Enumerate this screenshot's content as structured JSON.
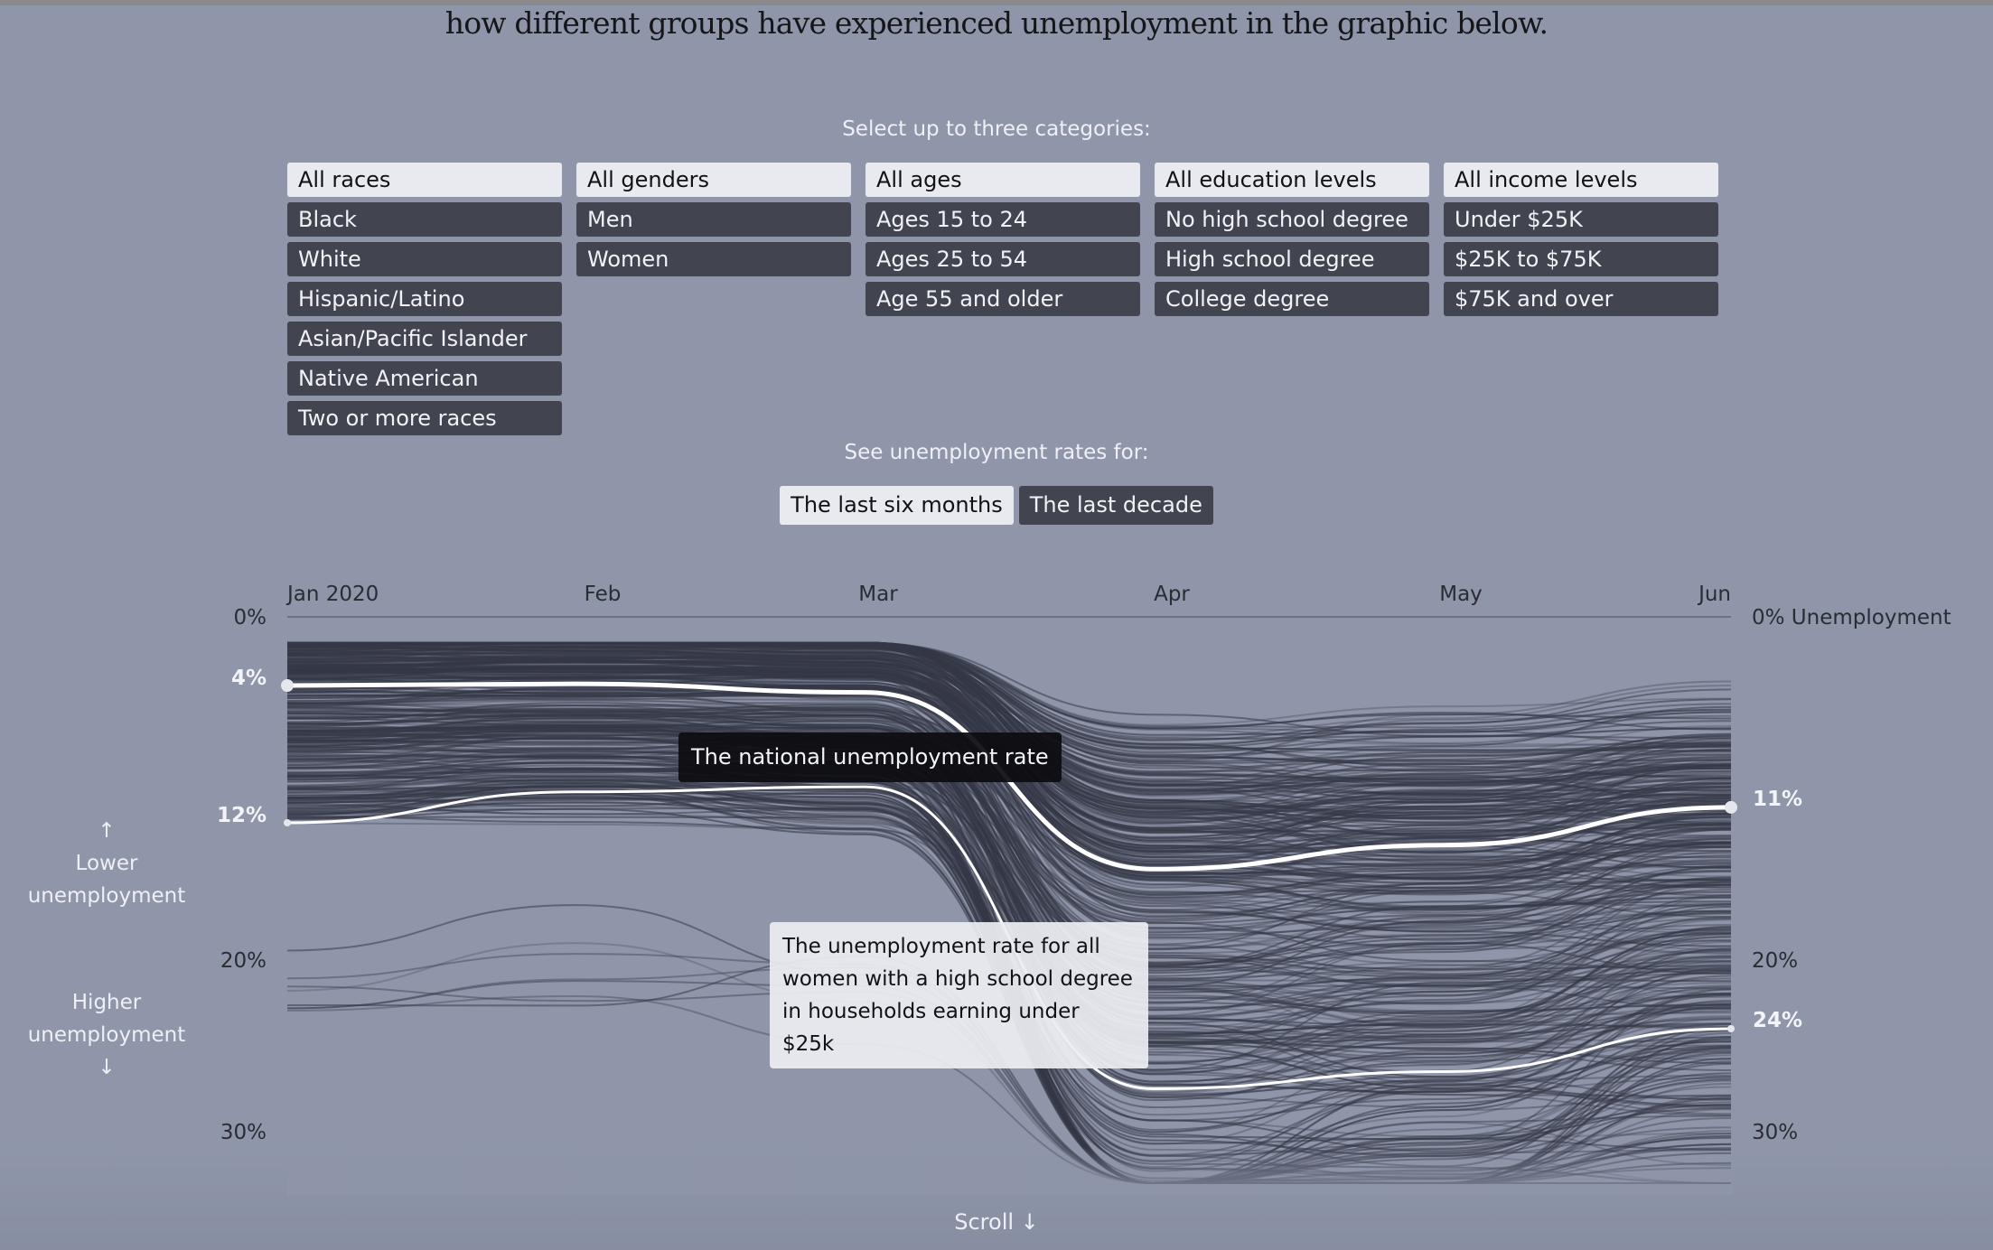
{
  "intro_text": "how different groups have experienced unemployment in the graphic below.",
  "category_prompt": "Select up to three categories:",
  "categories": {
    "race": {
      "options": [
        "All races",
        "Black",
        "White",
        "Hispanic/Latino",
        "Asian/Pacific Islander",
        "Native American",
        "Two or more races"
      ],
      "selected": "All races"
    },
    "gender": {
      "options": [
        "All genders",
        "Men",
        "Women"
      ],
      "selected": "All genders"
    },
    "age": {
      "options": [
        "All ages",
        "Ages 15 to 24",
        "Ages 25 to 54",
        "Age 55 and older"
      ],
      "selected": "All ages"
    },
    "education": {
      "options": [
        "All education levels",
        "No high school degree",
        "High school degree",
        "College degree"
      ],
      "selected": "All education levels"
    },
    "income": {
      "options": [
        "All income levels",
        "Under $25K",
        "$25K to $75K",
        "$75K and over"
      ],
      "selected": "All income levels"
    }
  },
  "range_prompt": "See unemployment rates for:",
  "range_options": [
    "The last six months",
    "The last decade"
  ],
  "range_selected": "The last six months",
  "side_notes": {
    "lower": "Lower unemployment",
    "higher": "Higher unemployment",
    "up_arrow": "↑",
    "down_arrow": "↓"
  },
  "annotations": {
    "national": "The national unemployment rate",
    "highlight": "The unemployment rate for all women with a high school degree in households earning under $25k"
  },
  "scroll_label": "Scroll ↓",
  "colors": {
    "background": "#8f96aa",
    "button_dark": "#42454f",
    "button_light": "#e9eaef",
    "line": "#3a3d4a",
    "highlight": "#ffffff"
  },
  "chart_data": {
    "type": "line",
    "title": "",
    "x": [
      "Jan 2020",
      "Feb",
      "Mar",
      "Apr",
      "May",
      "Jun"
    ],
    "ylabel": "Unemployment",
    "ylim": [
      0,
      30
    ],
    "y_inverted": true,
    "y_ticks": [
      "0%",
      "20%",
      "30%"
    ],
    "y_right_top_label": "0% Unemployment",
    "grid": false,
    "series": [
      {
        "name": "The national unemployment rate",
        "values": [
          4.0,
          3.9,
          4.4,
          14.7,
          13.3,
          11.1
        ],
        "start_label": "4%",
        "end_label": "11%",
        "emphasis": "thick"
      },
      {
        "name": "Women, high school degree, household income under $25K",
        "values": [
          12.0,
          10.2,
          9.9,
          27.5,
          26.5,
          24.0
        ],
        "start_label": "12%",
        "end_label": "24%",
        "emphasis": "thin"
      }
    ],
    "background_series_note": "hundreds of demographic-group lines drawn in dark gray"
  }
}
